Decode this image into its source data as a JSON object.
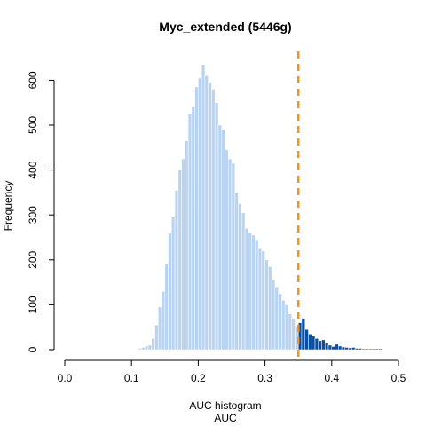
{
  "chart_data": {
    "type": "bar",
    "title": "Myc_extended (5446g)",
    "xlabel_line1": "AUC histogram",
    "xlabel_line2": "AUC",
    "ylabel": "Frequency",
    "xlim": [
      0.0,
      0.5
    ],
    "ylim": [
      0,
      620
    ],
    "x_ticks": [
      "0.0",
      "0.1",
      "0.2",
      "0.3",
      "0.4",
      "0.5"
    ],
    "y_ticks": [
      "0",
      "100",
      "200",
      "300",
      "400",
      "500",
      "600"
    ],
    "bin_width": 0.005,
    "threshold": 0.35,
    "colors": {
      "below": "#b9d4f2",
      "above": "#0c4fa0",
      "threshold_line": "#f0961e",
      "axis": "#000000"
    },
    "bins_start": 0.11,
    "counts": [
      3,
      5,
      8,
      10,
      25,
      55,
      95,
      130,
      190,
      260,
      295,
      355,
      400,
      425,
      465,
      525,
      540,
      585,
      605,
      635,
      610,
      595,
      580,
      550,
      500,
      490,
      445,
      425,
      415,
      350,
      325,
      305,
      270,
      260,
      255,
      245,
      225,
      220,
      200,
      185,
      155,
      140,
      125,
      110,
      100,
      80,
      70,
      50,
      60,
      70,
      45,
      35,
      30,
      25,
      20,
      22,
      15,
      10,
      7,
      12,
      8,
      6,
      5,
      4,
      5,
      3,
      3,
      2,
      2,
      2,
      2,
      2,
      2,
      1,
      1
    ]
  }
}
